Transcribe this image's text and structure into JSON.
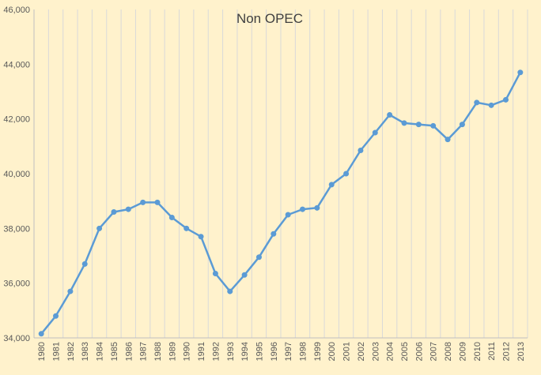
{
  "chart_data": {
    "type": "line",
    "title": "Non OPEC",
    "xlabel": "",
    "ylabel": "",
    "ylim": [
      34000,
      46000
    ],
    "ytick_step": 2000,
    "ytick_labels": [
      "34,000",
      "36,000",
      "38,000",
      "40,000",
      "42,000",
      "44,000",
      "46,000"
    ],
    "grid": "vertical",
    "legend": "none",
    "line_color": "#5b9bd5",
    "background_color": "#fff2cc",
    "gridline_color": "#d9d9d9",
    "x": [
      "1980",
      "1981",
      "1982",
      "1983",
      "1984",
      "1985",
      "1986",
      "1987",
      "1988",
      "1989",
      "1990",
      "1991",
      "1992",
      "1993",
      "1994",
      "1995",
      "1996",
      "1997",
      "1998",
      "1999",
      "2000",
      "2001",
      "2002",
      "2003",
      "2004",
      "2005",
      "2006",
      "2007",
      "2008",
      "2009",
      "2010",
      "2011",
      "2012",
      "2013"
    ],
    "series": [
      {
        "values": [
          34150,
          34800,
          35700,
          36700,
          38000,
          38600,
          38700,
          38950,
          38950,
          38400,
          38000,
          37700,
          36350,
          35700,
          36300,
          36950,
          37800,
          38500,
          38700,
          38750,
          39600,
          40000,
          40850,
          41500,
          42150,
          41850,
          41800,
          41750,
          41250,
          41800,
          42600,
          42500,
          42700,
          43700
        ]
      }
    ]
  }
}
